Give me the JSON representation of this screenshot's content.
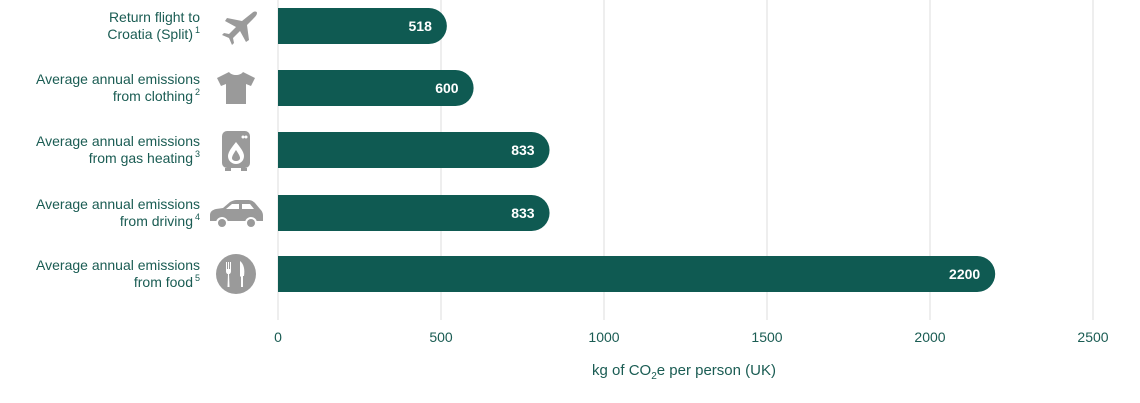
{
  "colors": {
    "bar": "#0f5a52",
    "text": "#1a5c53",
    "icon": "#9a9a9a",
    "grid": "#dcdcdc"
  },
  "chart_data": {
    "type": "bar",
    "orientation": "horizontal",
    "categories": [
      {
        "lines": [
          "Return flight to",
          "Croatia (Split)"
        ],
        "footnote": "1",
        "icon": "airplane-icon"
      },
      {
        "lines": [
          "Average annual emissions",
          "from clothing"
        ],
        "footnote": "2",
        "icon": "tshirt-icon"
      },
      {
        "lines": [
          "Average annual emissions",
          "from gas heating"
        ],
        "footnote": "3",
        "icon": "gas-boiler-icon"
      },
      {
        "lines": [
          "Average annual emissions",
          "from driving"
        ],
        "footnote": "4",
        "icon": "car-icon"
      },
      {
        "lines": [
          "Average annual emissions",
          "from food"
        ],
        "footnote": "5",
        "icon": "fork-knife-icon"
      }
    ],
    "values": [
      518,
      600,
      833,
      833,
      2200
    ],
    "xlabel_parts": {
      "pre": "kg of CO",
      "sub": "2",
      "post": "e per person (UK)"
    },
    "xlim": [
      0,
      2500
    ],
    "ticks": [
      0,
      500,
      1000,
      1500,
      2000,
      2500
    ],
    "grid": true,
    "legend": "none"
  }
}
